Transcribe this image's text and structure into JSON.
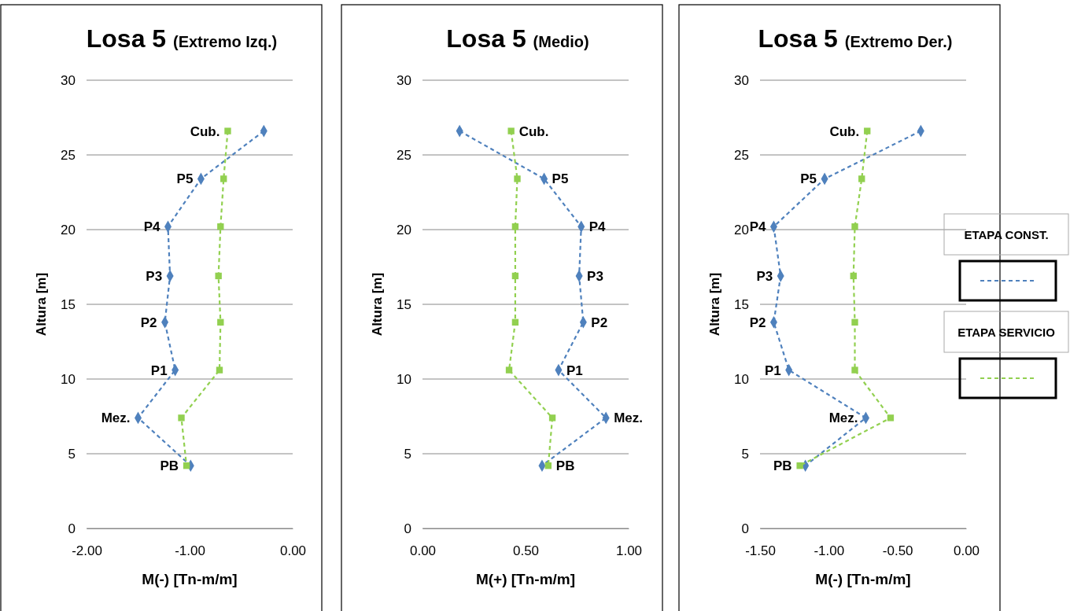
{
  "chart_data": [
    {
      "type": "line",
      "title": "Losa 5 (Extremo Izq.)",
      "xlabel": "M(-) [Tn-m/m]",
      "ylabel": "Altura [m]",
      "xlim": [
        -2,
        0
      ],
      "xticks": [
        {
          "value": -2,
          "label": "-2.00"
        },
        {
          "value": -1,
          "label": "-1.00"
        },
        {
          "value": 0,
          "label": "0.00"
        }
      ],
      "ylim": [
        0,
        30
      ],
      "yticks": [
        0,
        5,
        10,
        15,
        20,
        25,
        30
      ],
      "grid": "y",
      "legend": false,
      "line_style": "dashed",
      "series": [
        {
          "color": "#4f81bd",
          "marker": "diamond",
          "x": [
            -0.28,
            -0.89,
            -1.21,
            -1.19,
            -1.24,
            -1.14,
            -1.5,
            -0.99
          ],
          "values": [
            26.6,
            23.4,
            20.2,
            16.9,
            13.8,
            10.6,
            7.4,
            4.2
          ]
        },
        {
          "color": "#92d050",
          "marker": "square",
          "x": [
            -0.63,
            -0.67,
            -0.7,
            -0.72,
            -0.7,
            -0.71,
            -1.08,
            -1.03
          ],
          "values": [
            26.6,
            23.4,
            20.2,
            16.9,
            13.8,
            10.6,
            7.4,
            4.2
          ]
        }
      ],
      "annotations": [
        {
          "text": "Cub.",
          "x": -0.63,
          "y": 26.6
        },
        {
          "text": "P5",
          "x": -0.89,
          "y": 23.4
        },
        {
          "text": "P4",
          "x": -1.21,
          "y": 20.2
        },
        {
          "text": "P3",
          "x": -1.19,
          "y": 16.9
        },
        {
          "text": "P2",
          "x": -1.24,
          "y": 13.8
        },
        {
          "text": "P1",
          "x": -1.14,
          "y": 10.6
        },
        {
          "text": "Mez.",
          "x": -1.5,
          "y": 7.4
        },
        {
          "text": "PB",
          "x": -1.03,
          "y": 4.2
        }
      ]
    },
    {
      "type": "line",
      "title": "Losa 5 (Medio)",
      "xlabel": "M(+) [Tn-m/m]",
      "ylabel": "Altura [m]",
      "xlim": [
        0,
        1
      ],
      "xticks": [
        {
          "value": 0,
          "label": "0.00"
        },
        {
          "value": 0.5,
          "label": "0.50"
        },
        {
          "value": 1,
          "label": "1.00"
        }
      ],
      "ylim": [
        0,
        30
      ],
      "yticks": [
        0,
        5,
        10,
        15,
        20,
        25,
        30
      ],
      "grid": "y",
      "legend": false,
      "line_style": "dashed",
      "series": [
        {
          "color": "#4f81bd",
          "marker": "diamond",
          "x": [
            0.18,
            0.59,
            0.77,
            0.76,
            0.78,
            0.66,
            0.89,
            0.58
          ],
          "values": [
            26.6,
            23.4,
            20.2,
            16.9,
            13.8,
            10.6,
            7.4,
            4.2
          ]
        },
        {
          "color": "#92d050",
          "marker": "square",
          "x": [
            0.43,
            0.46,
            0.45,
            0.45,
            0.45,
            0.42,
            0.63,
            0.61
          ],
          "values": [
            26.6,
            23.4,
            20.2,
            16.9,
            13.8,
            10.6,
            7.4,
            4.2
          ]
        }
      ],
      "annotations": [
        {
          "text": "Cub.",
          "x": 0.43,
          "y": 26.6
        },
        {
          "text": "P5",
          "x": 0.59,
          "y": 23.4
        },
        {
          "text": "P4",
          "x": 0.77,
          "y": 20.2
        },
        {
          "text": "P3",
          "x": 0.76,
          "y": 16.9
        },
        {
          "text": "P2",
          "x": 0.78,
          "y": 13.8
        },
        {
          "text": "P1",
          "x": 0.66,
          "y": 10.6
        },
        {
          "text": "Mez.",
          "x": 0.89,
          "y": 7.4
        },
        {
          "text": "PB",
          "x": 0.61,
          "y": 4.2
        }
      ]
    },
    {
      "type": "line",
      "title": "Losa 5 (Extremo Der.)",
      "xlabel": "M(-) [Tn-m/m]",
      "ylabel": "Altura [m]",
      "xlim": [
        -1.5,
        0
      ],
      "xticks": [
        {
          "value": -1.5,
          "label": "-1.50"
        },
        {
          "value": -1,
          "label": "-1.00"
        },
        {
          "value": -0.5,
          "label": "-0.50"
        },
        {
          "value": 0,
          "label": "0.00"
        }
      ],
      "ylim": [
        0,
        30
      ],
      "yticks": [
        0,
        5,
        10,
        15,
        20,
        25,
        30
      ],
      "grid": "y",
      "legend": "right",
      "line_style": "dashed",
      "series": [
        {
          "name": "ETAPA CONST.",
          "color": "#4f81bd",
          "marker": "diamond",
          "x": [
            -0.33,
            -1.03,
            -1.4,
            -1.35,
            -1.4,
            -1.29,
            -0.73,
            -1.17
          ],
          "values": [
            26.6,
            23.4,
            20.2,
            16.9,
            13.8,
            10.6,
            7.4,
            4.2
          ]
        },
        {
          "name": "ETAPA SERVICIO",
          "color": "#92d050",
          "marker": "square",
          "x": [
            -0.72,
            -0.76,
            -0.81,
            -0.82,
            -0.81,
            -0.81,
            -0.55,
            -1.21
          ],
          "values": [
            26.6,
            23.4,
            20.2,
            16.9,
            13.8,
            10.6,
            7.4,
            4.2
          ]
        }
      ],
      "annotations": [
        {
          "text": "Cub.",
          "x": -0.72,
          "y": 26.6
        },
        {
          "text": "P5",
          "x": -1.03,
          "y": 23.4
        },
        {
          "text": "P4",
          "x": -1.4,
          "y": 20.2
        },
        {
          "text": "P3",
          "x": -1.35,
          "y": 16.9
        },
        {
          "text": "P2",
          "x": -1.4,
          "y": 13.8
        },
        {
          "text": "P1",
          "x": -1.29,
          "y": 10.6
        },
        {
          "text": "Mez.",
          "x": -0.73,
          "y": 7.4
        },
        {
          "text": "PB",
          "x": -1.21,
          "y": 4.2
        }
      ]
    }
  ]
}
